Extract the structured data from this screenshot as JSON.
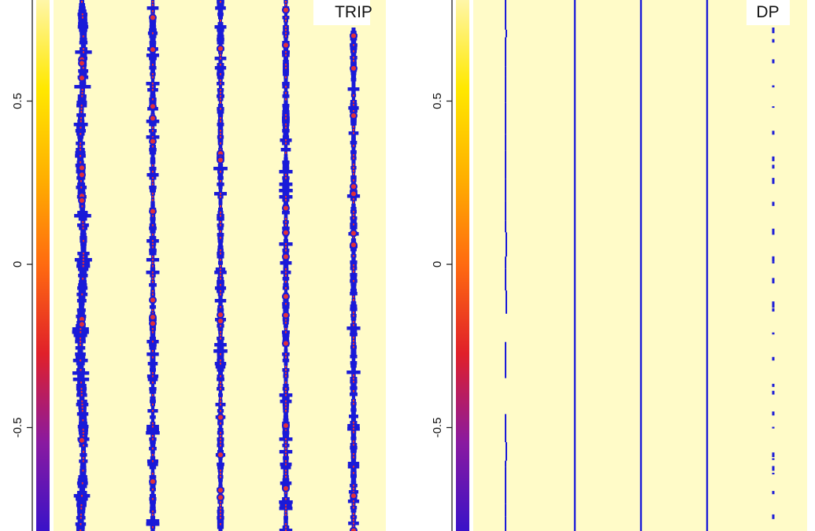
{
  "chart_data": [
    {
      "type": "heatmap",
      "panel_label": "TRIP",
      "colorbar": {
        "ticks": [
          0.5,
          0,
          -0.5
        ],
        "tick_labels": [
          "0.5",
          "0",
          "-0.5"
        ],
        "range": [
          -0.82,
          0.81
        ],
        "colors": [
          "#3a12c8",
          "#8a1aa0",
          "#e0202a",
          "#ff6a10",
          "#ffb000",
          "#ffe800",
          "#fff6a8"
        ]
      },
      "background_color": "#fffbc8",
      "line_color": "#1a1ad8",
      "core_color": "#e0303a",
      "columns": 5,
      "style": "jagged"
    },
    {
      "type": "heatmap",
      "panel_label": "DP",
      "colorbar": {
        "ticks": [
          0.5,
          0,
          -0.5
        ],
        "tick_labels": [
          "0.5",
          "0",
          "-0.5"
        ],
        "range": [
          -0.82,
          0.81
        ],
        "colors": [
          "#3a12c8",
          "#8a1aa0",
          "#e0202a",
          "#ff6a10",
          "#ffb000",
          "#ffe800",
          "#fff6a8"
        ]
      },
      "background_color": "#fffbc8",
      "line_color": "#1a1ad8",
      "columns": 5,
      "style": "thin"
    }
  ]
}
